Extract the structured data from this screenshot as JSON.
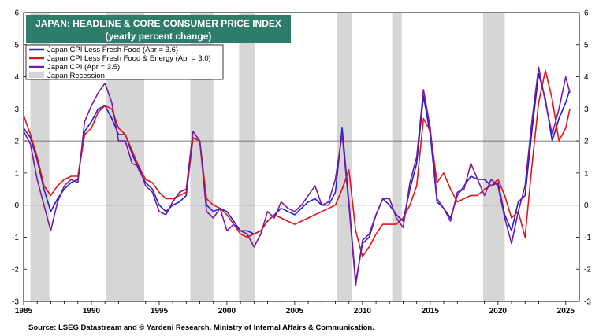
{
  "chart_data": {
    "type": "line",
    "title": "JAPAN: HEADLINE & CORE CONSUMER PRICE INDEX",
    "subtitle": "(yearly percent change)",
    "xlim": [
      1985,
      2026
    ],
    "ylim": [
      -3,
      6
    ],
    "x_ticks": [
      "1985",
      "1990",
      "1995",
      "2000",
      "2005",
      "2010",
      "2015",
      "2020",
      "2025"
    ],
    "y_ticks": [
      "-3",
      "-2",
      "-1",
      "0",
      "1",
      "2",
      "3",
      "4",
      "5",
      "6"
    ],
    "reference_lines": [
      0,
      2
    ],
    "recessions": [
      [
        1985.5,
        1986.9
      ],
      [
        1991.1,
        1993.9
      ],
      [
        1997.3,
        1999.0
      ],
      [
        2000.9,
        2002.1
      ],
      [
        2008.1,
        2009.2
      ],
      [
        2012.2,
        2012.9
      ],
      [
        2018.9,
        2020.5
      ]
    ],
    "recession_label": "Japan Recession",
    "series": [
      {
        "name": "Japan CPI Less Fresh Food (Apr = 3.6)",
        "color": "#1f1fd6",
        "points": [
          [
            1985,
            2.4
          ],
          [
            1985.5,
            2.1
          ],
          [
            1986,
            1.4
          ],
          [
            1986.5,
            0.5
          ],
          [
            1987,
            -0.2
          ],
          [
            1987.5,
            0.2
          ],
          [
            1988,
            0.5
          ],
          [
            1988.5,
            0.7
          ],
          [
            1989,
            0.8
          ],
          [
            1989.5,
            2.3
          ],
          [
            1990,
            2.6
          ],
          [
            1990.5,
            3.0
          ],
          [
            1991,
            3.1
          ],
          [
            1991.5,
            2.7
          ],
          [
            1992,
            2.2
          ],
          [
            1992.5,
            2.2
          ],
          [
            1993,
            1.6
          ],
          [
            1993.5,
            1.1
          ],
          [
            1994,
            0.7
          ],
          [
            1994.5,
            0.5
          ],
          [
            1995,
            0.0
          ],
          [
            1995.5,
            -0.2
          ],
          [
            1996,
            0.0
          ],
          [
            1996.5,
            0.1
          ],
          [
            1997,
            0.3
          ],
          [
            1997.5,
            2.1
          ],
          [
            1998,
            2.0
          ],
          [
            1998.5,
            0.0
          ],
          [
            1999,
            -0.2
          ],
          [
            1999.5,
            -0.1
          ],
          [
            2000,
            -0.2
          ],
          [
            2000.5,
            -0.5
          ],
          [
            2001,
            -0.8
          ],
          [
            2001.5,
            -0.8
          ],
          [
            2002,
            -0.9
          ],
          [
            2002.5,
            -0.8
          ],
          [
            2003,
            -0.5
          ],
          [
            2003.5,
            -0.3
          ],
          [
            2004,
            -0.1
          ],
          [
            2004.5,
            -0.2
          ],
          [
            2005,
            -0.3
          ],
          [
            2005.5,
            -0.1
          ],
          [
            2006,
            0.1
          ],
          [
            2006.5,
            0.2
          ],
          [
            2007,
            0.0
          ],
          [
            2007.5,
            0.0
          ],
          [
            2008,
            0.4
          ],
          [
            2008.5,
            2.4
          ],
          [
            2009,
            0.1
          ],
          [
            2009.5,
            -2.4
          ],
          [
            2010,
            -1.2
          ],
          [
            2010.5,
            -1.0
          ],
          [
            2011,
            -0.3
          ],
          [
            2011.5,
            0.2
          ],
          [
            2012,
            0.0
          ],
          [
            2012.5,
            -0.3
          ],
          [
            2013,
            -0.5
          ],
          [
            2013.5,
            0.5
          ],
          [
            2014,
            1.3
          ],
          [
            2014.5,
            3.4
          ],
          [
            2015,
            2.2
          ],
          [
            2015.5,
            0.1
          ],
          [
            2016,
            -0.1
          ],
          [
            2016.5,
            -0.4
          ],
          [
            2017,
            0.3
          ],
          [
            2017.5,
            0.6
          ],
          [
            2018,
            0.9
          ],
          [
            2018.5,
            0.8
          ],
          [
            2019,
            0.8
          ],
          [
            2019.5,
            0.6
          ],
          [
            2020,
            0.7
          ],
          [
            2020.5,
            -0.3
          ],
          [
            2021,
            -0.8
          ],
          [
            2021.5,
            0.1
          ],
          [
            2022,
            0.3
          ],
          [
            2022.5,
            2.3
          ],
          [
            2023,
            4.1
          ],
          [
            2023.5,
            3.3
          ],
          [
            2024,
            2.0
          ],
          [
            2024.5,
            2.7
          ],
          [
            2025,
            3.2
          ],
          [
            2025.3,
            3.6
          ]
        ]
      },
      {
        "name": "Japan CPI Less Fresh Food & Energy (Apr = 3.0)",
        "color": "#e01515",
        "points": [
          [
            1985,
            2.8
          ],
          [
            1985.5,
            2.2
          ],
          [
            1986,
            1.5
          ],
          [
            1986.5,
            0.6
          ],
          [
            1987,
            0.3
          ],
          [
            1987.5,
            0.6
          ],
          [
            1988,
            0.8
          ],
          [
            1988.5,
            0.9
          ],
          [
            1989,
            0.9
          ],
          [
            1989.5,
            2.2
          ],
          [
            1990,
            2.4
          ],
          [
            1990.5,
            2.9
          ],
          [
            1991,
            3.1
          ],
          [
            1991.5,
            3.0
          ],
          [
            1992,
            2.4
          ],
          [
            1992.5,
            2.2
          ],
          [
            1993,
            1.7
          ],
          [
            1993.5,
            1.2
          ],
          [
            1994,
            0.8
          ],
          [
            1994.5,
            0.7
          ],
          [
            1995,
            0.4
          ],
          [
            1995.5,
            0.2
          ],
          [
            1996,
            0.2
          ],
          [
            1996.5,
            0.3
          ],
          [
            1997,
            0.4
          ],
          [
            1997.5,
            2.1
          ],
          [
            1998,
            2.0
          ],
          [
            1998.5,
            0.2
          ],
          [
            1999,
            0.0
          ],
          [
            1999.5,
            -0.1
          ],
          [
            2000,
            -0.3
          ],
          [
            2000.5,
            -0.6
          ],
          [
            2001,
            -0.9
          ],
          [
            2001.5,
            -1.0
          ],
          [
            2002,
            -0.9
          ],
          [
            2002.5,
            -0.8
          ],
          [
            2003,
            -0.5
          ],
          [
            2003.5,
            -0.3
          ],
          [
            2004,
            -0.4
          ],
          [
            2004.5,
            -0.5
          ],
          [
            2005,
            -0.6
          ],
          [
            2005.5,
            -0.5
          ],
          [
            2006,
            -0.4
          ],
          [
            2006.5,
            -0.3
          ],
          [
            2007,
            -0.2
          ],
          [
            2007.5,
            -0.1
          ],
          [
            2008,
            0.0
          ],
          [
            2008.5,
            0.5
          ],
          [
            2009,
            1.1
          ],
          [
            2009.5,
            -0.8
          ],
          [
            2010,
            -1.6
          ],
          [
            2010.5,
            -1.3
          ],
          [
            2011,
            -0.9
          ],
          [
            2011.5,
            -0.6
          ],
          [
            2012,
            -0.6
          ],
          [
            2012.5,
            -0.6
          ],
          [
            2013,
            -0.4
          ],
          [
            2013.5,
            0.0
          ],
          [
            2014,
            0.6
          ],
          [
            2014.5,
            2.7
          ],
          [
            2015,
            2.3
          ],
          [
            2015.5,
            0.7
          ],
          [
            2016,
            1.0
          ],
          [
            2016.5,
            0.5
          ],
          [
            2017,
            0.1
          ],
          [
            2017.5,
            0.2
          ],
          [
            2018,
            0.3
          ],
          [
            2018.5,
            0.3
          ],
          [
            2019,
            0.5
          ],
          [
            2019.5,
            0.6
          ],
          [
            2020,
            0.8
          ],
          [
            2020.5,
            0.3
          ],
          [
            2021,
            -0.4
          ],
          [
            2021.5,
            -0.2
          ],
          [
            2022,
            -1.0
          ],
          [
            2022.5,
            1.2
          ],
          [
            2023,
            3.2
          ],
          [
            2023.5,
            4.2
          ],
          [
            2024,
            3.3
          ],
          [
            2024.5,
            2.0
          ],
          [
            2025,
            2.4
          ],
          [
            2025.3,
            3.0
          ]
        ]
      },
      {
        "name": "Japan CPI  (Apr = 3.5)",
        "color": "#7a1a9a",
        "points": [
          [
            1985,
            2.3
          ],
          [
            1985.5,
            1.9
          ],
          [
            1986,
            0.8
          ],
          [
            1986.5,
            0.0
          ],
          [
            1987,
            -0.8
          ],
          [
            1987.5,
            0.1
          ],
          [
            1988,
            0.6
          ],
          [
            1988.5,
            0.8
          ],
          [
            1989,
            0.7
          ],
          [
            1989.5,
            2.6
          ],
          [
            1990,
            3.1
          ],
          [
            1990.5,
            3.5
          ],
          [
            1991,
            3.8
          ],
          [
            1991.5,
            3.2
          ],
          [
            1992,
            2.0
          ],
          [
            1992.5,
            2.0
          ],
          [
            1993,
            1.3
          ],
          [
            1993.5,
            1.2
          ],
          [
            1994,
            0.6
          ],
          [
            1994.5,
            0.4
          ],
          [
            1995,
            -0.2
          ],
          [
            1995.5,
            -0.3
          ],
          [
            1996,
            0.1
          ],
          [
            1996.5,
            0.4
          ],
          [
            1997,
            0.5
          ],
          [
            1997.5,
            2.3
          ],
          [
            1998,
            2.0
          ],
          [
            1998.5,
            -0.2
          ],
          [
            1999,
            -0.4
          ],
          [
            1999.5,
            -0.1
          ],
          [
            2000,
            -0.8
          ],
          [
            2000.5,
            -0.6
          ],
          [
            2001,
            -0.8
          ],
          [
            2001.5,
            -0.9
          ],
          [
            2002,
            -1.3
          ],
          [
            2002.5,
            -0.9
          ],
          [
            2003,
            -0.2
          ],
          [
            2003.5,
            -0.4
          ],
          [
            2004,
            0.1
          ],
          [
            2004.5,
            -0.1
          ],
          [
            2005,
            -0.2
          ],
          [
            2005.5,
            0.0
          ],
          [
            2006,
            0.3
          ],
          [
            2006.5,
            0.6
          ],
          [
            2007,
            0.0
          ],
          [
            2007.5,
            0.1
          ],
          [
            2008,
            0.8
          ],
          [
            2008.5,
            2.2
          ],
          [
            2009,
            0.0
          ],
          [
            2009.5,
            -2.5
          ],
          [
            2010,
            -1.1
          ],
          [
            2010.5,
            -0.9
          ],
          [
            2011,
            -0.3
          ],
          [
            2011.5,
            0.2
          ],
          [
            2012,
            0.2
          ],
          [
            2012.5,
            -0.4
          ],
          [
            2013,
            -0.7
          ],
          [
            2013.5,
            0.7
          ],
          [
            2014,
            1.5
          ],
          [
            2014.5,
            3.6
          ],
          [
            2015,
            2.4
          ],
          [
            2015.5,
            0.2
          ],
          [
            2016,
            -0.1
          ],
          [
            2016.5,
            -0.5
          ],
          [
            2017,
            0.4
          ],
          [
            2017.5,
            0.5
          ],
          [
            2018,
            1.3
          ],
          [
            2018.5,
            0.8
          ],
          [
            2019,
            0.3
          ],
          [
            2019.5,
            0.8
          ],
          [
            2020,
            0.6
          ],
          [
            2020.5,
            -0.4
          ],
          [
            2021,
            -1.2
          ],
          [
            2021.5,
            -0.2
          ],
          [
            2022,
            0.6
          ],
          [
            2022.5,
            2.6
          ],
          [
            2023,
            4.3
          ],
          [
            2023.5,
            3.2
          ],
          [
            2024,
            2.2
          ],
          [
            2024.5,
            3.0
          ],
          [
            2025,
            4.0
          ],
          [
            2025.3,
            3.5
          ]
        ]
      }
    ],
    "source": "Source: LSEG Datastream and © Yardeni Research. Ministry of Internal Affairs & Communication."
  }
}
